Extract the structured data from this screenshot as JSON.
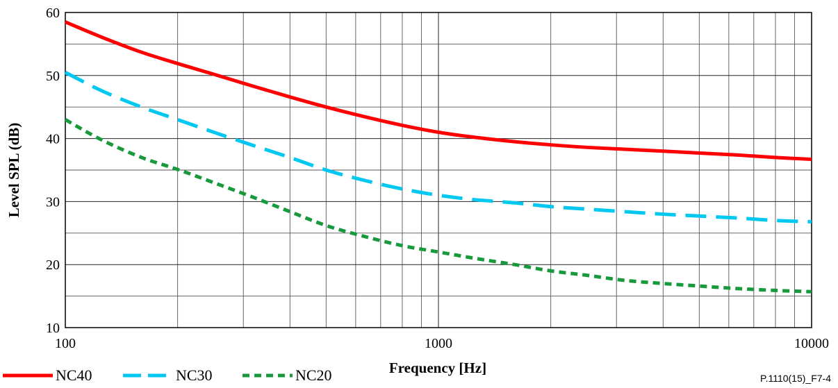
{
  "figure_id": "P.1110(15)_F7-4",
  "chart_data": {
    "type": "line",
    "title": "",
    "xlabel": "Frequency [Hz]",
    "ylabel": "Level SPL (dB)",
    "xscale": "log",
    "xlim": [
      100,
      10000
    ],
    "ylim": [
      10,
      60
    ],
    "x_ticks": [
      100,
      1000,
      10000
    ],
    "x_tick_labels": [
      "100",
      "1000",
      "10000"
    ],
    "y_ticks": [
      10,
      20,
      30,
      40,
      50,
      60
    ],
    "y_tick_labels": [
      "10",
      "20",
      "30",
      "40",
      "50",
      "60"
    ],
    "grid": true,
    "legend_position": "bottom-left",
    "series": [
      {
        "name": "NC40",
        "color": "#ff0000",
        "style": "solid",
        "x": [
          100,
          125,
          160,
          200,
          250,
          315,
          400,
          500,
          630,
          800,
          1000,
          1250,
          1600,
          2000,
          2500,
          3150,
          4000,
          5000,
          6300,
          8000,
          10000
        ],
        "y": [
          58.5,
          56.1,
          53.7,
          51.9,
          50.2,
          48.4,
          46.6,
          45.0,
          43.5,
          42.1,
          41.0,
          40.2,
          39.5,
          39.0,
          38.6,
          38.3,
          38.0,
          37.7,
          37.4,
          37.0,
          36.7
        ]
      },
      {
        "name": "NC30",
        "color": "#00c8f0",
        "style": "dashed",
        "x": [
          100,
          125,
          160,
          200,
          250,
          315,
          400,
          500,
          630,
          800,
          1000,
          1250,
          1600,
          2000,
          2500,
          3150,
          4000,
          5000,
          6300,
          8000,
          10000
        ],
        "y": [
          50.5,
          47.6,
          45.0,
          43.0,
          41.0,
          39.0,
          37.0,
          35.0,
          33.4,
          32.0,
          31.0,
          30.3,
          29.8,
          29.2,
          28.8,
          28.4,
          28.0,
          27.7,
          27.4,
          27.0,
          26.8
        ]
      },
      {
        "name": "NC20",
        "color": "#189a3c",
        "style": "dotted",
        "x": [
          100,
          125,
          160,
          200,
          250,
          315,
          400,
          500,
          630,
          800,
          1000,
          1250,
          1600,
          2000,
          2500,
          3150,
          4000,
          5000,
          6300,
          8000,
          10000
        ],
        "y": [
          43.0,
          39.8,
          37.0,
          35.1,
          33.0,
          30.8,
          28.4,
          26.2,
          24.5,
          23.0,
          22.0,
          21.0,
          20.0,
          19.0,
          18.3,
          17.5,
          17.0,
          16.6,
          16.2,
          15.9,
          15.7
        ]
      }
    ]
  }
}
